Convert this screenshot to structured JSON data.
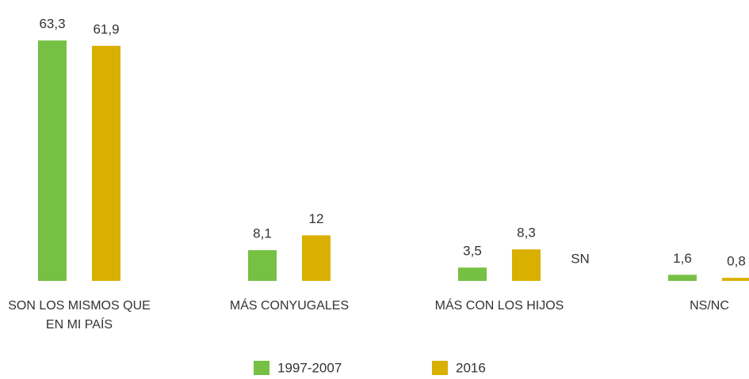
{
  "chart_data": {
    "type": "bar",
    "categories": [
      "SON LOS MISMOS QUE EN MI PAÍS",
      "MÁS CONYUGALES",
      "MÁS CON LOS HIJOS",
      "NS/NC"
    ],
    "series": [
      {
        "name": "1997-2007",
        "color": "#76c043",
        "values": [
          63.3,
          8.1,
          3.5,
          1.6
        ],
        "value_labels": [
          "63,3",
          "8,1",
          "3,5",
          "1,6"
        ]
      },
      {
        "name": "2016",
        "color": "#d9b000",
        "values": [
          61.9,
          12,
          8.3,
          0.8
        ],
        "value_labels": [
          "61,9",
          "12",
          "8,3",
          "0,8"
        ]
      }
    ],
    "annotations": [
      "SN"
    ],
    "ylim": [
      0,
      70
    ],
    "legend": "bottom"
  }
}
